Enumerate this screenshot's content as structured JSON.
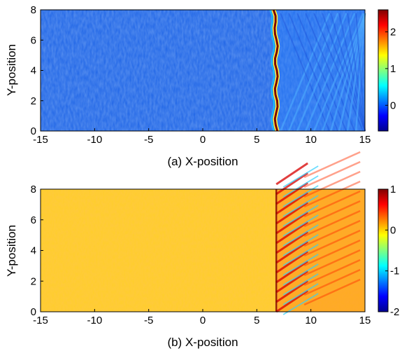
{
  "chart_data": [
    {
      "type": "heatmap",
      "xlabel": "(a) X-position",
      "ylabel": "Y-position",
      "xlim": [
        -15,
        15
      ],
      "ylim": [
        0,
        8
      ],
      "x_ticks": [
        "-15",
        "-10",
        "-5",
        "0",
        "5",
        "10",
        "15"
      ],
      "y_ticks": [
        "0",
        "2",
        "4",
        "6",
        "8"
      ],
      "colorbar_ticks": [
        "0",
        "1",
        "2"
      ],
      "colorbar_range": [
        -0.7,
        2.6
      ],
      "colormap": "jet",
      "front_x": 6.8,
      "background_value": -0.2,
      "front_value": 2.6
    },
    {
      "type": "heatmap",
      "xlabel": "(b) X-position",
      "ylabel": "Y-position",
      "xlim": [
        -15,
        15
      ],
      "ylim": [
        0,
        8
      ],
      "x_ticks": [
        "-15",
        "-10",
        "-5",
        "0",
        "5",
        "10",
        "15"
      ],
      "y_ticks": [
        "0",
        "2",
        "4",
        "6",
        "8"
      ],
      "colorbar_ticks": [
        "-2",
        "-1",
        "0",
        "1"
      ],
      "colorbar_range": [
        -2,
        1
      ],
      "colormap": "jet",
      "front_x": 6.8,
      "background_value": 0.25,
      "front_value": 1
    }
  ]
}
